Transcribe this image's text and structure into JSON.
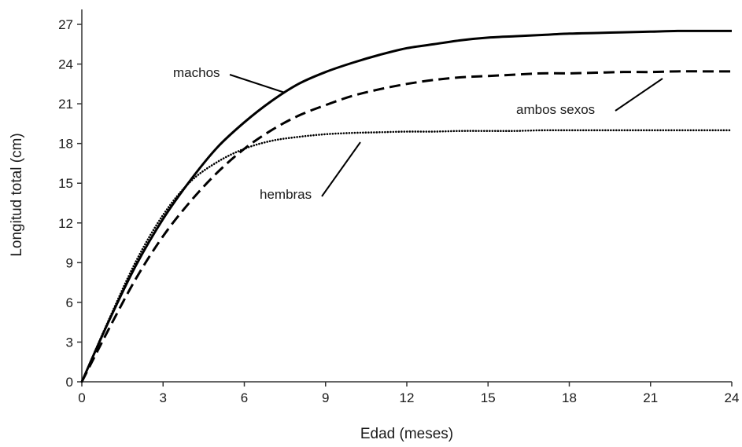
{
  "chart_data": {
    "type": "line",
    "xlabel": "Edad (meses)",
    "ylabel": "Longitud total (cm)",
    "xlim": [
      0,
      24
    ],
    "ylim": [
      0,
      27
    ],
    "xticks": [
      0,
      3,
      6,
      9,
      12,
      15,
      18,
      21,
      24
    ],
    "yticks": [
      0,
      3,
      6,
      9,
      12,
      15,
      18,
      21,
      24,
      27
    ],
    "grid": false,
    "x": [
      0,
      1,
      2,
      3,
      4,
      5,
      6,
      7,
      8,
      9,
      10,
      11,
      12,
      13,
      14,
      15,
      16,
      17,
      18,
      19,
      20,
      21,
      22,
      23,
      24
    ],
    "series": [
      {
        "name": "machos",
        "style": "solid",
        "values": [
          0,
          4.6,
          8.8,
          12.3,
          15.2,
          17.7,
          19.6,
          21.2,
          22.5,
          23.4,
          24.1,
          24.7,
          25.2,
          25.5,
          25.8,
          26.0,
          26.1,
          26.2,
          26.3,
          26.35,
          26.4,
          26.45,
          26.5,
          26.5,
          26.5
        ]
      },
      {
        "name": "ambos sexos",
        "style": "dashed",
        "values": [
          0,
          4.0,
          7.8,
          11.0,
          13.6,
          15.8,
          17.6,
          19.0,
          20.1,
          20.9,
          21.6,
          22.1,
          22.5,
          22.8,
          23.0,
          23.1,
          23.2,
          23.3,
          23.3,
          23.35,
          23.4,
          23.4,
          23.45,
          23.45,
          23.45
        ]
      },
      {
        "name": "hembras",
        "style": "dotted",
        "values": [
          0,
          4.7,
          9.1,
          12.6,
          15.1,
          16.6,
          17.6,
          18.2,
          18.5,
          18.7,
          18.8,
          18.85,
          18.9,
          18.9,
          18.95,
          18.95,
          18.95,
          19.0,
          19.0,
          19.0,
          19.0,
          19.0,
          19.0,
          19.0,
          19.0
        ]
      }
    ],
    "annotations": [
      {
        "text": "machos",
        "series": "machos"
      },
      {
        "text": "ambos sexos",
        "series": "ambos sexos"
      },
      {
        "text": "hembras",
        "series": "hembras"
      }
    ]
  }
}
